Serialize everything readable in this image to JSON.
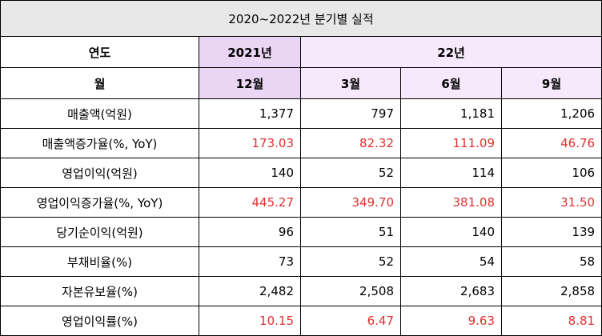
{
  "title": "2020~2022년 분기별 실적",
  "header": {
    "year_label": "연도",
    "month_label": "월",
    "year_2021": "2021년",
    "year_22": "22년",
    "months": [
      "12월",
      "3월",
      "6월",
      "9월"
    ]
  },
  "colors": {
    "header_lavender": "#ead5f5",
    "header_lavender_light": "#f5e9fb",
    "growth_red": "#e03030"
  },
  "rows": [
    {
      "label": "매출액(억원)",
      "values": [
        "1,377",
        "797",
        "1,181",
        "1,206"
      ],
      "red": false
    },
    {
      "label": "매출액증가율(%, YoY)",
      "values": [
        "173.03",
        "82.32",
        "111.09",
        "46.76"
      ],
      "red": true
    },
    {
      "label": "영업이익(억원)",
      "values": [
        "140",
        "52",
        "114",
        "106"
      ],
      "red": false
    },
    {
      "label": "영업이익증가율(%, YoY)",
      "values": [
        "445.27",
        "349.70",
        "381.08",
        "31.50"
      ],
      "red": true
    },
    {
      "label": "당기순이익(억원)",
      "values": [
        "96",
        "51",
        "140",
        "139"
      ],
      "red": false
    },
    {
      "label": "부채비율(%)",
      "values": [
        "73",
        "52",
        "54",
        "58"
      ],
      "red": false
    },
    {
      "label": "자본유보율(%)",
      "values": [
        "2,482",
        "2,508",
        "2,683",
        "2,858"
      ],
      "red": false
    },
    {
      "label": "영업이익률(%)",
      "values": [
        "10.15",
        "6.47",
        "9.63",
        "8.81"
      ],
      "red": true
    }
  ]
}
